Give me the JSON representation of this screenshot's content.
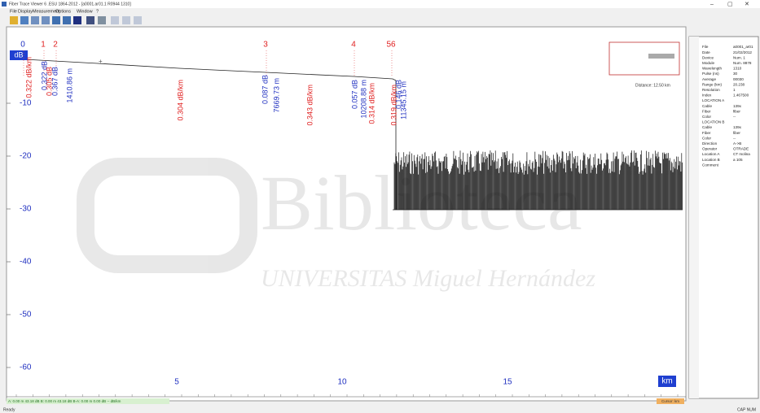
{
  "window": {
    "title": "Fiber Trace Viewer 6 .ESU 1864-2012 - [a0001.ar01.1 R0944 1310]",
    "menu": [
      "File",
      "Display",
      "Measurement",
      "Options",
      "Window",
      "?"
    ]
  },
  "plot": {
    "y_unit": "dB",
    "x_unit": "km",
    "y_ticks": [
      "-10",
      "-20",
      "-30",
      "-40",
      "-50",
      "-60"
    ],
    "x_ticks": [
      "5",
      "10",
      "15"
    ],
    "events": [
      "0",
      "1",
      "2",
      "3",
      "4",
      "56"
    ],
    "annotations": [
      {
        "text": "0.322 dB/km",
        "color": "#e02020"
      },
      {
        "text": "0.322 dB",
        "color": "#2030c0"
      },
      {
        "text": "0.305 dB",
        "color": "#e02020"
      },
      {
        "text": "0.367 dB",
        "color": "#2030c0"
      },
      {
        "text": "1410.86 m",
        "color": "#2030c0"
      },
      {
        "text": "0.304 dB/km",
        "color": "#e02020"
      },
      {
        "text": "0.087 dB",
        "color": "#2030c0"
      },
      {
        "text": "7669.73 m",
        "color": "#2030c0"
      },
      {
        "text": "0.343 dB/km",
        "color": "#e02020"
      },
      {
        "text": "0.057 dB",
        "color": "#2030c0"
      },
      {
        "text": "10208.88 m",
        "color": "#2030c0"
      },
      {
        "text": "0.314 dB/km",
        "color": "#e02020"
      },
      {
        "text": "0.319 dB/km",
        "color": "#e02020"
      },
      {
        "text": "0.146 dB",
        "color": "#2030c0"
      },
      {
        "text": "11345.15 m",
        "color": "#2030c0"
      }
    ],
    "overview": "Distance: 12.50 km"
  },
  "watermark": {
    "line1": "Biblioteca",
    "line2": "UNIVERSITAS Miguel Hernández"
  },
  "panel": {
    "rows": [
      [
        "File",
        "a0001_ar01"
      ],
      [
        "Date",
        "21/02/2012"
      ],
      [
        "Device",
        "Num. 1"
      ],
      [
        "Module",
        "Num. 8878"
      ],
      [
        "Wavelength",
        "1310"
      ],
      [
        "Pulse (ns)",
        "30"
      ],
      [
        "Average",
        "00030"
      ],
      [
        "Range (km)",
        "20.238"
      ],
      [
        "Resolution",
        "1"
      ],
      [
        "Index",
        "1.467500"
      ],
      [
        "LOCATION A",
        ""
      ],
      [
        "Cable",
        "139x"
      ],
      [
        "Fiber",
        "fiber"
      ],
      [
        "Color",
        "--"
      ],
      [
        "LOCATION B",
        ""
      ],
      [
        "Cable",
        "139x"
      ],
      [
        "Fiber",
        "fiber"
      ],
      [
        "Color",
        "--"
      ],
      [
        "Direction",
        "A->B"
      ],
      [
        "Operator",
        "OTRADE"
      ],
      [
        "Location A",
        "CT molina"
      ],
      [
        "Location B",
        "a 105"
      ],
      [
        "Comment",
        ""
      ]
    ]
  },
  "status_strip": {
    "cursors": "A: 0.00 m  43.18 dB   B: 0.00 m  43.18 dB   B-A: 0.00 m  0.00 dB  -- dB/km",
    "cursor_box": "Cursor: km"
  },
  "status": {
    "left": "Ready",
    "right": "CAP NUM"
  }
}
